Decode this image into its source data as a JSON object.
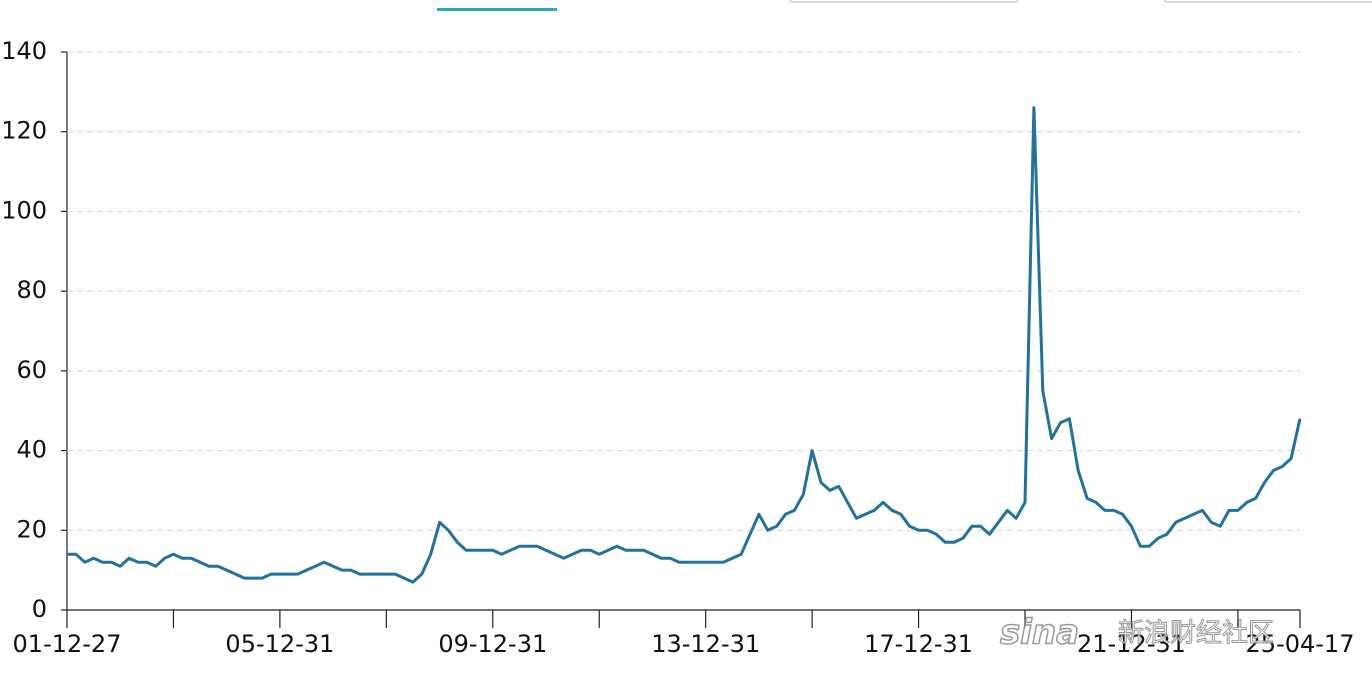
{
  "chart_data": {
    "type": "line",
    "watermark": {
      "logo": "sina",
      "text": "新浪财经社区"
    },
    "xlim": [
      0,
      139
    ],
    "xticks": [
      {
        "value": 0,
        "label": "01-12-27"
      },
      {
        "value": 24,
        "label": "05-12-31"
      },
      {
        "value": 48,
        "label": "09-12-31"
      },
      {
        "value": 72,
        "label": "13-12-31"
      },
      {
        "value": 96,
        "label": "17-12-31"
      },
      {
        "value": 120,
        "label": "21-12-31"
      },
      {
        "value": 139,
        "label": "25-04-17"
      }
    ],
    "xminorticks": [
      12,
      36,
      60,
      84,
      108,
      132
    ],
    "ylim": [
      0,
      140
    ],
    "yticks": [
      0,
      20,
      40,
      60,
      80,
      100,
      120,
      140
    ],
    "grid": true,
    "series": [
      {
        "color": "#22729c",
        "values": [
          14,
          14,
          12,
          13,
          12,
          12,
          11,
          13,
          12,
          12,
          11,
          13,
          14,
          13,
          13,
          12,
          11,
          11,
          10,
          9,
          8,
          8,
          8,
          9,
          9,
          9,
          9,
          10,
          11,
          12,
          11,
          10,
          10,
          9,
          9,
          9,
          9,
          9,
          8,
          7,
          9,
          14,
          22,
          20,
          17,
          15,
          15,
          15,
          15,
          14,
          15,
          16,
          16,
          16,
          15,
          14,
          13,
          14,
          15,
          15,
          14,
          15,
          16,
          15,
          15,
          15,
          14,
          13,
          13,
          12,
          12,
          12,
          12,
          12,
          12,
          13,
          14,
          19,
          24,
          20,
          21,
          24,
          25,
          29,
          40,
          32,
          30,
          31,
          27,
          23,
          24,
          25,
          27,
          25,
          24,
          21,
          20,
          20,
          19,
          17,
          17,
          18,
          21,
          21,
          19,
          22,
          25,
          23,
          27,
          126,
          55,
          43,
          47,
          48,
          35,
          28,
          27,
          25,
          25,
          24,
          21,
          16,
          16,
          18,
          19,
          22,
          23,
          24,
          25,
          22,
          21,
          25,
          25,
          27,
          28,
          32,
          35,
          36,
          38,
          48
        ]
      }
    ]
  }
}
